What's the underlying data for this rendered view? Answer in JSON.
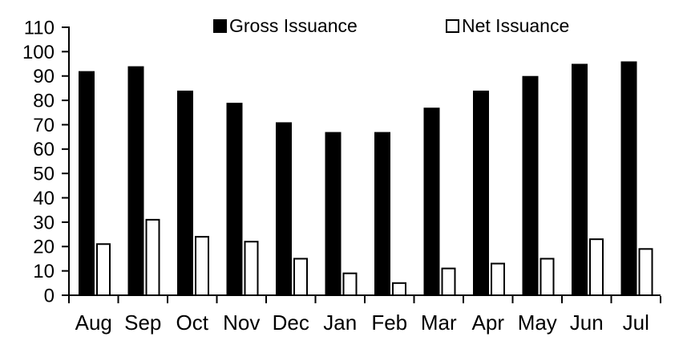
{
  "chart_data": {
    "type": "bar",
    "title": "",
    "categories": [
      "Aug",
      "Sep",
      "Oct",
      "Nov",
      "Dec",
      "Jan",
      "Feb",
      "Mar",
      "Apr",
      "May",
      "Jun",
      "Jul"
    ],
    "series": [
      {
        "name": "Gross Issuance",
        "fill": "#000000",
        "stroke": "#000000",
        "values": [
          92,
          94,
          84,
          79,
          71,
          67,
          67,
          77,
          84,
          90,
          95,
          96
        ]
      },
      {
        "name": "Net Issuance",
        "fill": "#ffffff",
        "stroke": "#000000",
        "values": [
          21,
          31,
          24,
          22,
          15,
          9,
          5,
          11,
          13,
          15,
          23,
          19
        ]
      }
    ],
    "xlabel": "",
    "ylabel": "",
    "ylim": [
      0,
      110
    ],
    "ytick_step": 10,
    "ytick_labels": [
      "0",
      "10",
      "20",
      "30",
      "40",
      "50",
      "60",
      "70",
      "80",
      "90",
      "100",
      "110"
    ],
    "grid": false,
    "legend_position": "top-center"
  },
  "legend": {
    "gross_label": "Gross Issuance",
    "net_label": "Net Issuance"
  },
  "colors": {
    "background": "#ffffff",
    "axis": "#000000",
    "text": "#000000",
    "gross_bar": "#000000",
    "net_bar_fill": "#ffffff",
    "net_bar_outline": "#000000"
  }
}
